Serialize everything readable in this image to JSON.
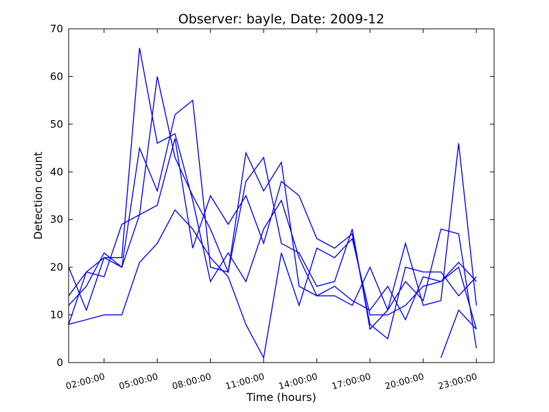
{
  "chart_data": {
    "type": "line",
    "title": "Observer: bayle, Date: 2009-12",
    "xlabel": "Time (hours)",
    "ylabel": "Detection count",
    "x_hours": [
      0,
      1,
      2,
      3,
      4,
      5,
      6,
      7,
      8,
      9,
      10,
      11,
      12,
      13,
      14,
      15,
      16,
      17,
      18,
      19,
      20,
      21,
      22,
      23,
      24
    ],
    "xlim": [
      0,
      24
    ],
    "ylim": [
      0,
      70
    ],
    "yticks": [
      0,
      10,
      20,
      30,
      40,
      50,
      60,
      70
    ],
    "xtick_hours": [
      2,
      5,
      8,
      11,
      14,
      17,
      20,
      23
    ],
    "xtick_labels": [
      "02:00:00",
      "05:00:00",
      "08:00:00",
      "11:00:00",
      "14:00:00",
      "17:00:00",
      "20:00:00",
      "23:00:00"
    ],
    "grid": false,
    "color": "#0000ff",
    "series": [
      {
        "values": [
          20,
          11,
          22,
          22,
          66,
          46,
          48,
          34,
          17,
          23,
          17,
          28,
          34,
          22,
          14,
          14,
          12,
          20,
          11,
          17,
          13,
          28,
          27,
          3
        ]
      },
      {
        "values": [
          14,
          19,
          22,
          20,
          45,
          36,
          52,
          55,
          20,
          19,
          44,
          36,
          42,
          16,
          14,
          16,
          13,
          11,
          16,
          9,
          18,
          17,
          21,
          17
        ]
      },
      {
        "values": [
          12,
          16,
          23,
          20,
          31,
          60,
          43,
          35,
          28,
          19,
          38,
          43,
          25,
          23,
          16,
          17,
          28,
          7,
          11,
          25,
          12,
          13,
          46,
          12
        ]
      },
      {
        "values": [
          8,
          19,
          18,
          29,
          31,
          33,
          47,
          24,
          35,
          29,
          35,
          25,
          38,
          35,
          26,
          24,
          27,
          8,
          5,
          20,
          19,
          19,
          14,
          18
        ]
      },
      {
        "values": [
          8,
          9,
          10,
          10,
          21,
          25,
          32,
          28,
          22,
          18,
          8,
          1,
          23,
          12,
          24,
          22,
          26,
          10,
          10,
          12,
          16,
          17,
          20,
          7
        ]
      },
      {
        "values": [
          null,
          null,
          null,
          null,
          null,
          null,
          null,
          null,
          null,
          null,
          null,
          null,
          null,
          null,
          null,
          null,
          null,
          null,
          null,
          null,
          null,
          1,
          11,
          7
        ]
      }
    ]
  }
}
